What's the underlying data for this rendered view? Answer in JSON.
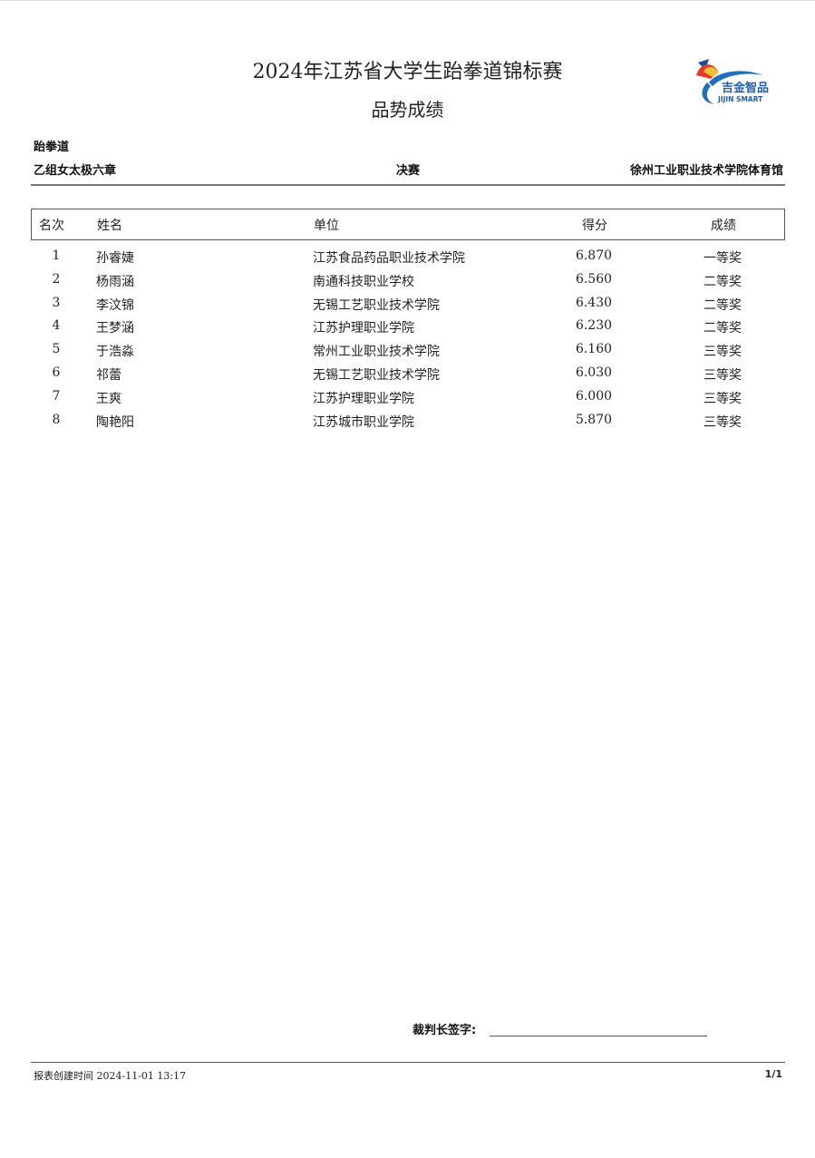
{
  "header": {
    "title": "2024年江苏省大学生跆拳道锦标赛",
    "subtitle": "品势成绩",
    "logo_text": "吉金智品",
    "logo_subtext": "JIJIN SMART"
  },
  "info": {
    "sport": "跆拳道",
    "category": "乙组女太极六章",
    "round": "决赛",
    "venue": "徐州工业职业技术学院体育馆"
  },
  "table": {
    "columns": [
      "名次",
      "姓名",
      "单位",
      "得分",
      "成绩"
    ],
    "rows": [
      {
        "rank": "1",
        "name": "孙睿婕",
        "unit": "江苏食品药品职业技术学院",
        "score": "6.870",
        "grade": "一等奖"
      },
      {
        "rank": "2",
        "name": "杨雨涵",
        "unit": "南通科技职业学校",
        "score": "6.560",
        "grade": "二等奖"
      },
      {
        "rank": "3",
        "name": "李汶锦",
        "unit": "无锡工艺职业技术学院",
        "score": "6.430",
        "grade": "二等奖"
      },
      {
        "rank": "4",
        "name": "王梦涵",
        "unit": "江苏护理职业学院",
        "score": "6.230",
        "grade": "二等奖"
      },
      {
        "rank": "5",
        "name": "于浩淼",
        "unit": "常州工业职业技术学院",
        "score": "6.160",
        "grade": "三等奖"
      },
      {
        "rank": "6",
        "name": "祁蕾",
        "unit": "无锡工艺职业技术学院",
        "score": "6.030",
        "grade": "三等奖"
      },
      {
        "rank": "7",
        "name": "王爽",
        "unit": "江苏护理职业学院",
        "score": "6.000",
        "grade": "三等奖"
      },
      {
        "rank": "8",
        "name": "陶艳阳",
        "unit": "江苏城市职业学院",
        "score": "5.870",
        "grade": "三等奖"
      }
    ]
  },
  "signature": {
    "label": "裁判长签字:"
  },
  "footer": {
    "created_label": "报表创建时间",
    "created_time": "2024-11-01 13:17",
    "page": "1/1"
  }
}
